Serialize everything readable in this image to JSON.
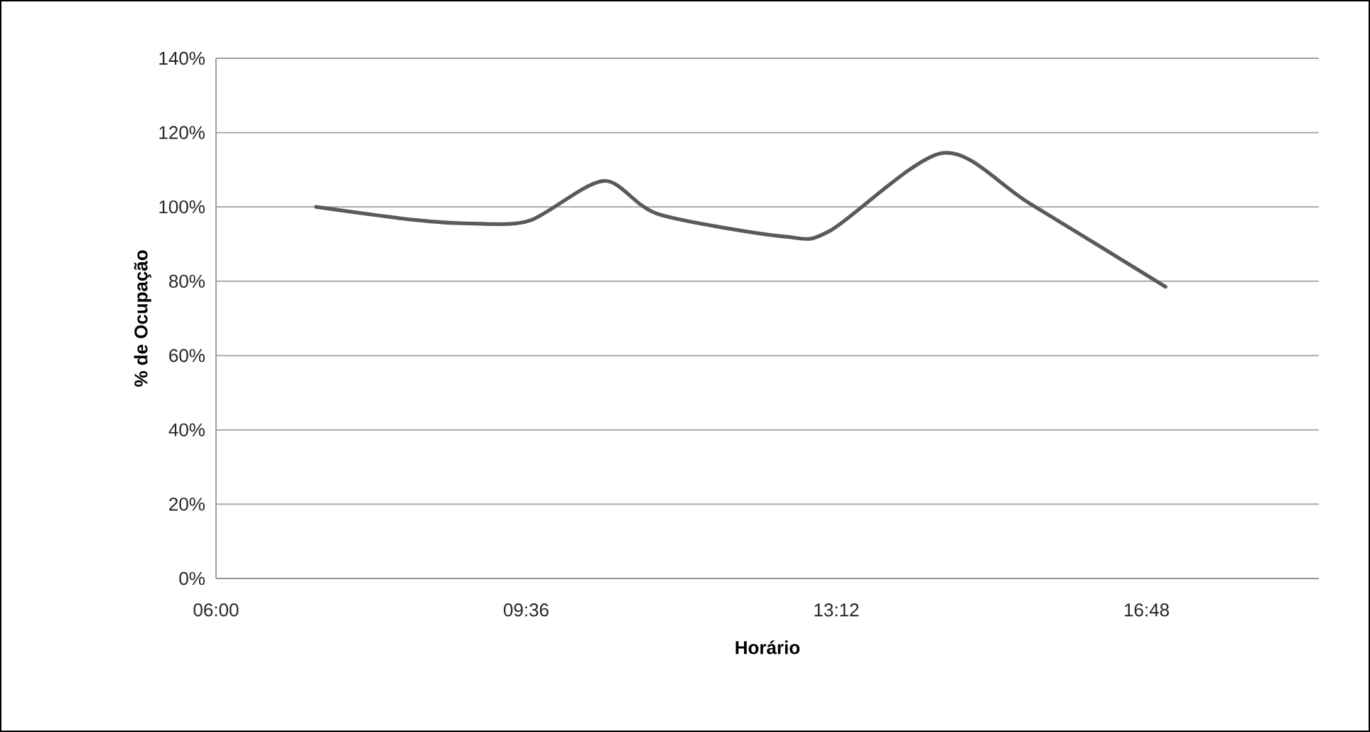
{
  "chart_data": {
    "type": "line",
    "xlabel": "Horário",
    "ylabel": "% de Ocupação",
    "series": [
      {
        "color": "#5a5a5a",
        "x": [
          7.16,
          8.3,
          9.0,
          9.65,
          10.5,
          11.14,
          12.6,
          13.12,
          14.43,
          15.44,
          17.02
        ],
        "values": [
          100,
          96.5,
          95.5,
          96.4,
          107,
          98,
          92,
          93.5,
          114.5,
          101,
          78.5
        ]
      }
    ],
    "xlim": [
      6,
      18.8
    ],
    "ylim": [
      0,
      140
    ],
    "xticks": [
      {
        "value": 6,
        "label": "06:00"
      },
      {
        "value": 9.6,
        "label": "09:36"
      },
      {
        "value": 13.2,
        "label": "13:12"
      },
      {
        "value": 16.8,
        "label": "16:48"
      }
    ],
    "yticks": [
      {
        "value": 0,
        "label": "0%"
      },
      {
        "value": 20,
        "label": "20%"
      },
      {
        "value": 40,
        "label": "40%"
      },
      {
        "value": 60,
        "label": "60%"
      },
      {
        "value": 80,
        "label": "80%"
      },
      {
        "value": 100,
        "label": "100%"
      },
      {
        "value": 120,
        "label": "120%"
      },
      {
        "value": 140,
        "label": "140%"
      }
    ],
    "grid": "y",
    "legend": false,
    "marker": "none",
    "line_style": "solid"
  }
}
